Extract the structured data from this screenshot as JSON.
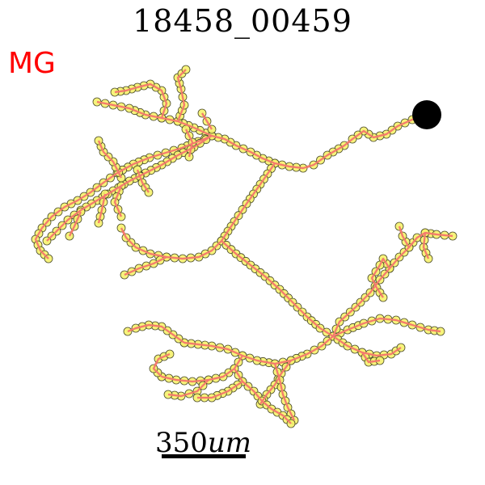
{
  "title": "18458_00459",
  "label": "MG",
  "scale": {
    "value": "350",
    "unit": "um"
  },
  "colors": {
    "trace": "#f47a6e",
    "node_fill": "#f6f26d",
    "node_edge": "#4a4a2a",
    "soma": "#000000",
    "label": "#ff0000"
  }
}
